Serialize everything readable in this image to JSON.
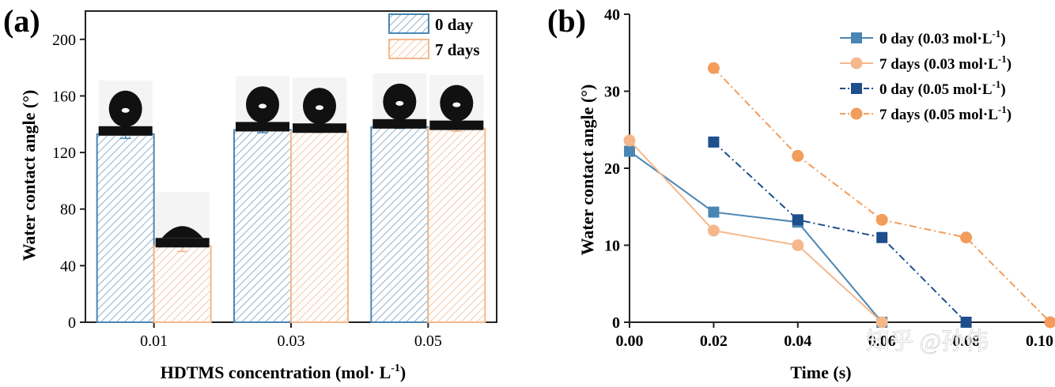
{
  "chart_data": [
    {
      "panel_label": "(a)",
      "type": "bar",
      "title": "",
      "xlabel_main": "HDTMS concentration (mol",
      "xlabel_dot": "·",
      "xlabel_unit": " L",
      "xlabel_sup": "-1",
      "xlabel_close": ")",
      "ylabel": "Water contact angle (°)",
      "categories": [
        "0.01",
        "0.03",
        "0.05"
      ],
      "ylim": [
        0,
        220
      ],
      "yticks": [
        "0",
        "40",
        "80",
        "120",
        "160",
        "200"
      ],
      "ytick_values": [
        0,
        40,
        80,
        120,
        160,
        200
      ],
      "series": [
        {
          "name": "0 day",
          "values": [
            133,
            136,
            138
          ],
          "errors": [
            3,
            2,
            1
          ],
          "color": "#4a86b4",
          "hatch": "#9dbfd9"
        },
        {
          "name": "7 days",
          "values": [
            54,
            135,
            137
          ],
          "errors": [
            4,
            1,
            2
          ],
          "color": "#f5b88c",
          "hatch": "#f7cdb0"
        }
      ],
      "legend_position": "top-right",
      "droplet_images": "droplet photographs above each bar"
    },
    {
      "panel_label": "(b)",
      "type": "line",
      "title": "",
      "xlabel": "Time (s)",
      "ylabel": "Water contact angle (°)",
      "xlim": [
        0,
        0.1
      ],
      "ylim": [
        0,
        40
      ],
      "xticks": [
        "0.00",
        "0.02",
        "0.04",
        "0.06",
        "0.08",
        "0.10"
      ],
      "xtick_values": [
        0,
        0.02,
        0.04,
        0.06,
        0.08,
        0.1
      ],
      "yticks": [
        "0",
        "10",
        "20",
        "30",
        "40"
      ],
      "ytick_values": [
        0,
        10,
        20,
        30,
        40
      ],
      "series": [
        {
          "name": "0 day (0.03 mol·L",
          "sup": "-1",
          "close": ")",
          "color": "#4a86b4",
          "marker": "square",
          "dash": "solid",
          "x": [
            0,
            0.02,
            0.04,
            0.06
          ],
          "y": [
            22.2,
            14.3,
            13.0,
            0
          ]
        },
        {
          "name": "7 days (0.03 mol·L",
          "sup": "-1",
          "close": ")",
          "color": "#f5b88c",
          "marker": "circle",
          "dash": "solid",
          "x": [
            0,
            0.02,
            0.04,
            0.06
          ],
          "y": [
            23.6,
            11.9,
            10.0,
            0
          ]
        },
        {
          "name": "0 day (0.05 mol·L",
          "sup": "-1",
          "close": ")",
          "color": "#1f4e8c",
          "marker": "square",
          "dash": "dashdot",
          "x": [
            0.02,
            0.04,
            0.06,
            0.08
          ],
          "y": [
            23.4,
            13.3,
            11.0,
            0
          ]
        },
        {
          "name": "7 days (0.05 mol·L",
          "sup": "-1",
          "close": ")",
          "color": "#f39c5b",
          "marker": "circle",
          "dash": "dashdot",
          "x": [
            0.02,
            0.04,
            0.06,
            0.08,
            0.1
          ],
          "y": [
            33.0,
            21.6,
            13.3,
            11.0,
            0
          ]
        }
      ],
      "legend_position": "top-right"
    }
  ],
  "watermark": "知乎 @孙伟"
}
